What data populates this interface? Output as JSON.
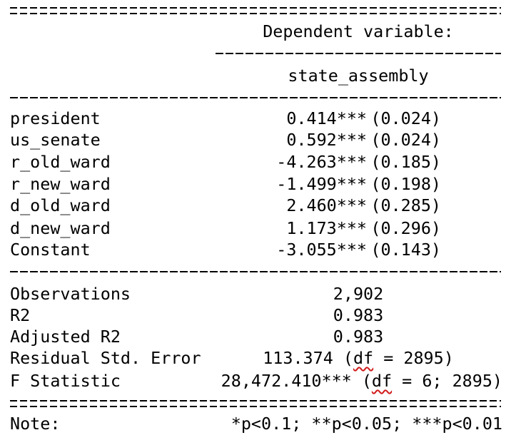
{
  "header": {
    "dependent_variable_title": "Dependent variable:",
    "model_name": "state_assembly"
  },
  "coefficients": [
    {
      "name": "president",
      "estimate": "0.414***",
      "se": "(0.024)"
    },
    {
      "name": "us_senate",
      "estimate": "0.592***",
      "se": "(0.024)"
    },
    {
      "name": "r_old_ward",
      "estimate": "-4.263***",
      "se": "(0.185)"
    },
    {
      "name": "r_new_ward",
      "estimate": "-1.499***",
      "se": "(0.198)"
    },
    {
      "name": "d_old_ward",
      "estimate": "2.460***",
      "se": "(0.285)"
    },
    {
      "name": "d_new_ward",
      "estimate": "1.173***",
      "se": "(0.296)"
    },
    {
      "name": "Constant",
      "estimate": "-3.055***",
      "se": "(0.143)"
    }
  ],
  "stats": {
    "observations_label": "Observations",
    "observations_value": "2,902",
    "r2_label": "R2",
    "r2_value": "0.983",
    "adj_r2_label": "Adjusted R2",
    "adj_r2_value": "0.983",
    "rse_label": "Residual Std. Error",
    "rse_value_prefix": "113.374 (",
    "rse_df": "df",
    "rse_value_suffix": " = 2895)",
    "f_label": "F Statistic",
    "f_value_prefix": "28,472.410*** (",
    "f_df": "df",
    "f_value_suffix": " = 6; 2895)"
  },
  "note": {
    "label": "Note:",
    "text": "*p<0.1; **p<0.05; ***p<0.01"
  }
}
